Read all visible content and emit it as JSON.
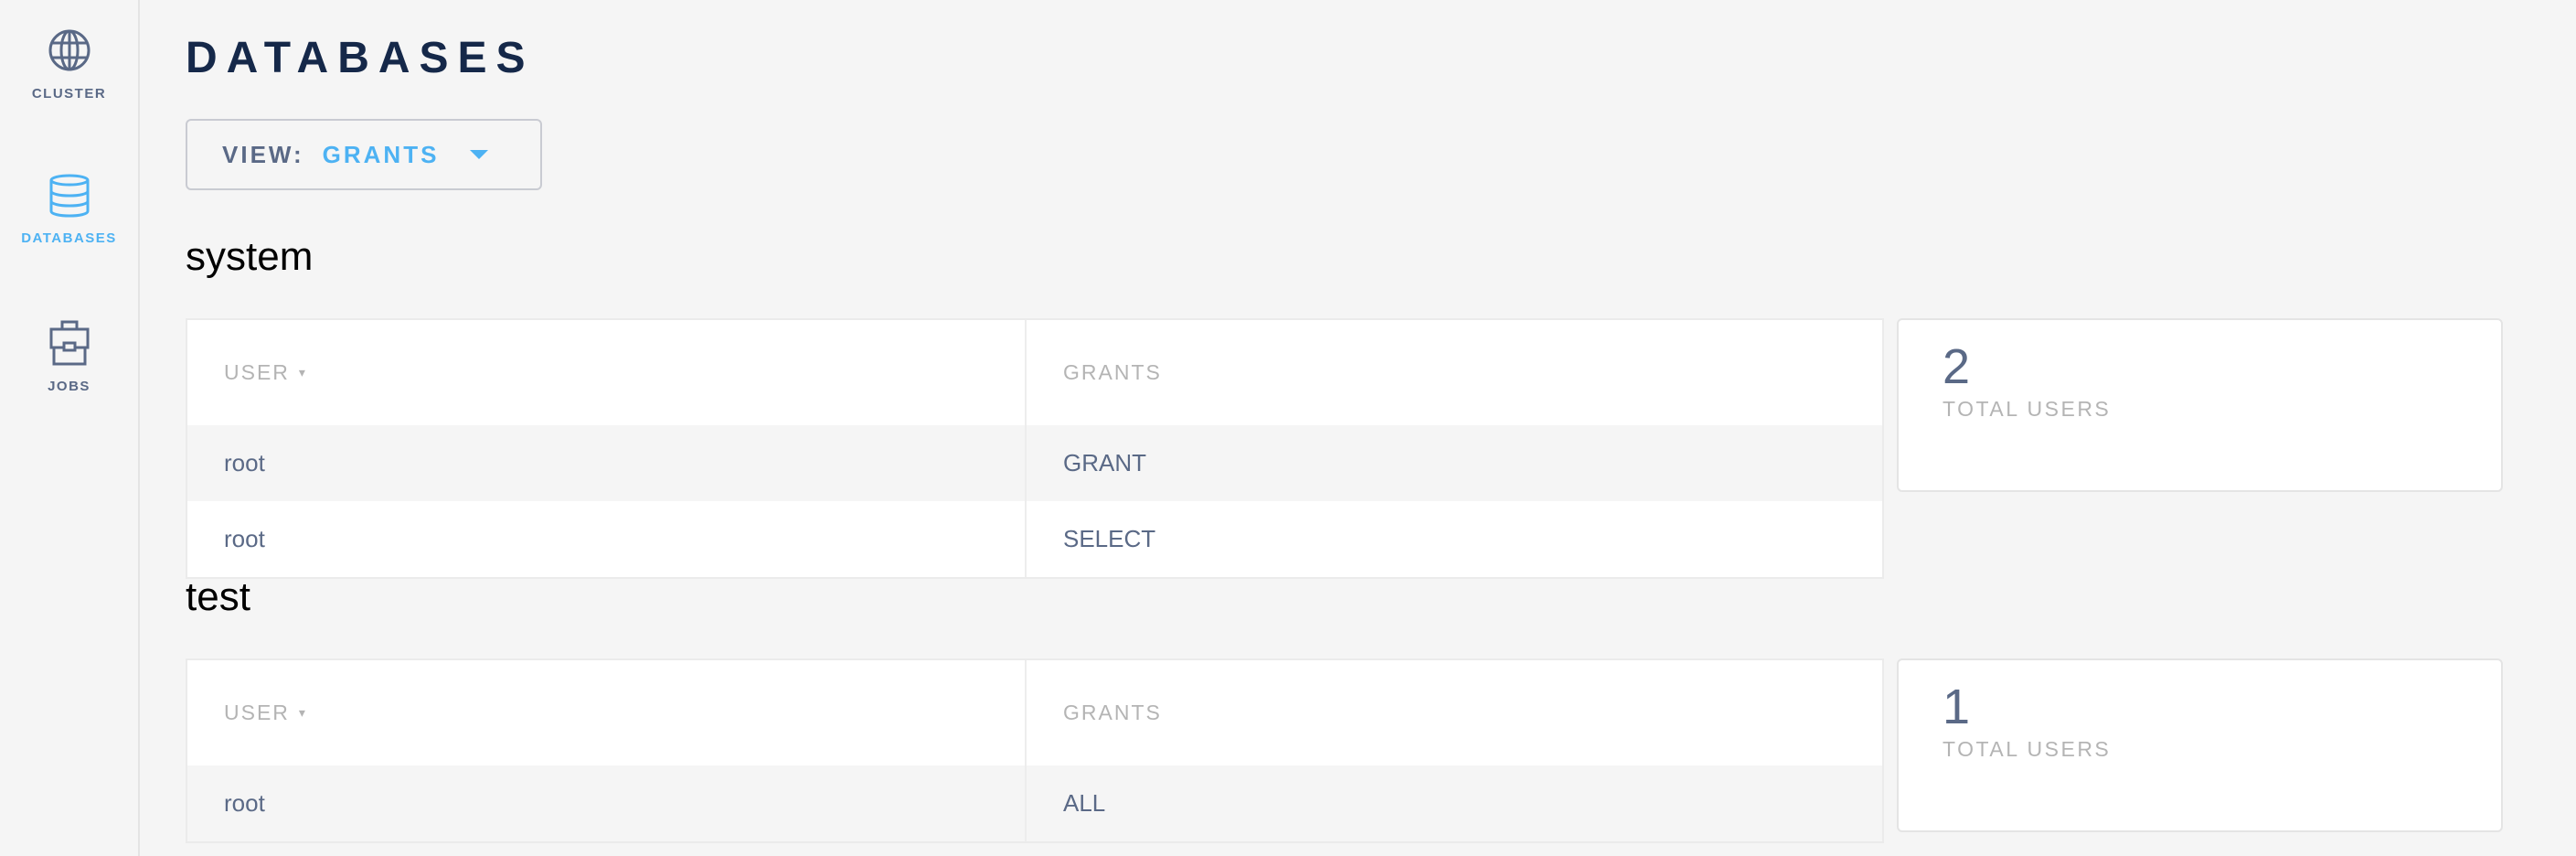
{
  "sidebar": {
    "items": [
      {
        "label": "CLUSTER",
        "icon": "globe-icon",
        "active": false
      },
      {
        "label": "DATABASES",
        "icon": "database-icon",
        "active": true
      },
      {
        "label": "JOBS",
        "icon": "briefcase-icon",
        "active": false
      }
    ]
  },
  "page": {
    "title": "DATABASES"
  },
  "view": {
    "label": "VIEW:",
    "value": "GRANTS"
  },
  "columns": {
    "user": "USER",
    "grants": "GRANTS",
    "sort_indicator": "▾"
  },
  "databases": [
    {
      "name": "system",
      "rows": [
        {
          "user": "root",
          "grant": "GRANT"
        },
        {
          "user": "root",
          "grant": "SELECT"
        }
      ],
      "total": "2",
      "total_label": "TOTAL USERS"
    },
    {
      "name": "test",
      "rows": [
        {
          "user": "root",
          "grant": "ALL"
        }
      ],
      "total": "1",
      "total_label": "TOTAL USERS"
    }
  ],
  "colors": {
    "accent": "#4db2f3",
    "nav": "#5a6986",
    "title": "#152849"
  }
}
